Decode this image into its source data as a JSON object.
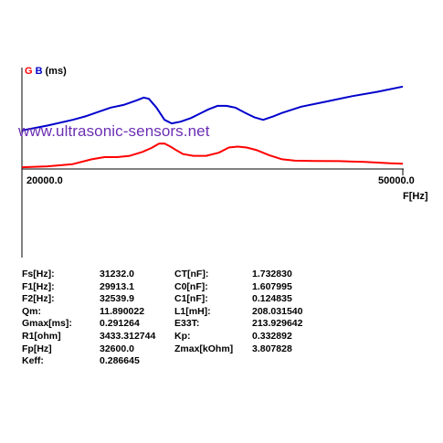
{
  "legend": {
    "g": "G",
    "b": "B",
    "unit": "(ms)"
  },
  "watermark": "www.ultrasonic-sensors.net",
  "chart_data": {
    "type": "line",
    "x_unit": "F[Hz]",
    "x_ticks": [
      "20000.0",
      "50000.0"
    ],
    "xlim": [
      20000,
      50000
    ],
    "series": [
      {
        "color": "#ff0000",
        "x": [
          20000,
          22000,
          24000,
          25500,
          26500,
          27500,
          28500,
          29500,
          30200,
          30800,
          31232,
          31700,
          32200,
          32700,
          33500,
          34500,
          35500,
          36300,
          37000,
          37700,
          38500,
          39500,
          40500,
          41500,
          43000,
          45000,
          47000,
          49000,
          50000
        ],
        "y": [
          0.02,
          0.03,
          0.055,
          0.11,
          0.135,
          0.135,
          0.15,
          0.195,
          0.24,
          0.29,
          0.291,
          0.255,
          0.21,
          0.17,
          0.15,
          0.15,
          0.185,
          0.245,
          0.255,
          0.245,
          0.215,
          0.155,
          0.11,
          0.095,
          0.092,
          0.09,
          0.08,
          0.065,
          0.06
        ]
      },
      {
        "color": "#0000cc",
        "x": [
          20000,
          22000,
          24000,
          25000,
          26000,
          27000,
          28000,
          29000,
          29600,
          30000,
          30600,
          31232,
          31800,
          32500,
          33300,
          34000,
          34700,
          35400,
          36100,
          36800,
          37600,
          38300,
          39000,
          39800,
          40500,
          42000,
          44000,
          46000,
          48000,
          50000
        ],
        "y": [
          0.44,
          0.495,
          0.56,
          0.6,
          0.65,
          0.7,
          0.73,
          0.78,
          0.815,
          0.8,
          0.7,
          0.56,
          0.52,
          0.54,
          0.58,
          0.63,
          0.68,
          0.72,
          0.72,
          0.7,
          0.64,
          0.59,
          0.56,
          0.6,
          0.64,
          0.71,
          0.77,
          0.83,
          0.88,
          0.94
        ]
      }
    ]
  },
  "params": [
    {
      "label1": "Fs[Hz]:",
      "value1": "31232.0",
      "label2": "CT[nF]:",
      "value2": "1.732830"
    },
    {
      "label1": "F1[Hz]:",
      "value1": "29913.1",
      "label2": "C0[nF]:",
      "value2": "1.607995"
    },
    {
      "label1": "F2[Hz]:",
      "value1": "32539.9",
      "label2": "C1[nF]:",
      "value2": "0.124835"
    },
    {
      "label1": "Qm:",
      "value1": "11.890022",
      "label2": "L1[mH]:",
      "value2": "208.031540"
    },
    {
      "label1": "Gmax[ms]:",
      "value1": "0.291264",
      "label2": "E33T:",
      "value2": "213.929642"
    },
    {
      "label1": "R1[ohm]",
      "value1": "3433.312744",
      "label2": "Kp:",
      "value2": "0.332892"
    },
    {
      "label1": "Fp[Hz]",
      "value1": "32600.0",
      "label2": "Zmax[kOhm]",
      "value2": "3.807828"
    },
    {
      "label1": "Keff:",
      "value1": "0.286645",
      "label2": "",
      "value2": ""
    }
  ]
}
